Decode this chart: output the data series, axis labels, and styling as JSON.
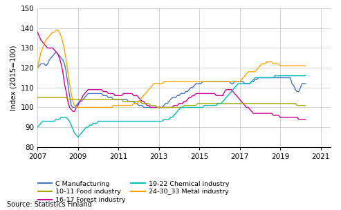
{
  "ylabel": "Index (2015=100)",
  "source": "Source: Statistics Finland",
  "ylim": [
    80,
    150
  ],
  "yticks": [
    80,
    90,
    100,
    110,
    120,
    130,
    140,
    150
  ],
  "xlim": [
    2007.0,
    2021.5
  ],
  "xticks": [
    2007,
    2009,
    2011,
    2013,
    2015,
    2017,
    2019,
    2021
  ],
  "colors": {
    "C Manufacturing": "#4472C4",
    "16-17 Forest industry": "#CC0099",
    "10-11 Food industry": "#AAAA00",
    "19-22 Chemical industry": "#00BBBB",
    "24-30_33 Metal industry": "#FFA500"
  },
  "legend_order": [
    "C Manufacturing",
    "10-11 Food industry",
    "16-17 Forest industry",
    "19-22 Chemical industry",
    "24-30_33 Metal industry"
  ],
  "series": {
    "C Manufacturing": [
      120,
      121,
      122,
      122,
      122,
      121,
      122,
      124,
      125,
      126,
      127,
      128,
      127,
      126,
      125,
      124,
      122,
      118,
      112,
      106,
      101,
      100,
      100,
      101,
      102,
      103,
      103,
      104,
      105,
      106,
      107,
      107,
      107,
      107,
      107,
      107,
      107,
      107,
      107,
      106,
      106,
      106,
      105,
      105,
      105,
      104,
      104,
      104,
      104,
      104,
      104,
      104,
      104,
      104,
      103,
      103,
      103,
      103,
      102,
      102,
      101,
      101,
      101,
      100,
      100,
      100,
      100,
      100,
      100,
      100,
      100,
      100,
      100,
      100,
      100,
      101,
      102,
      102,
      103,
      104,
      105,
      105,
      105,
      106,
      106,
      107,
      107,
      107,
      108,
      108,
      109,
      110,
      110,
      111,
      112,
      112,
      112,
      112,
      113,
      113,
      113,
      113,
      113,
      113,
      113,
      113,
      113,
      113,
      113,
      113,
      113,
      113,
      113,
      113,
      113,
      112,
      112,
      113,
      113,
      113,
      113,
      113,
      113,
      112,
      112,
      112,
      112,
      113,
      113,
      114,
      114,
      115,
      115,
      115,
      115,
      115,
      115,
      115,
      115,
      115,
      115,
      115,
      115,
      115,
      115,
      115,
      115,
      115,
      115,
      115,
      115,
      112,
      111,
      109,
      108,
      108,
      110,
      112,
      112,
      112
    ],
    "16-17 Forest industry": [
      138,
      136,
      134,
      133,
      132,
      131,
      130,
      130,
      130,
      130,
      129,
      128,
      127,
      125,
      122,
      118,
      112,
      108,
      103,
      100,
      99,
      98,
      98,
      100,
      101,
      103,
      104,
      106,
      107,
      108,
      109,
      109,
      109,
      109,
      109,
      109,
      109,
      109,
      109,
      108,
      108,
      108,
      107,
      107,
      107,
      107,
      106,
      106,
      106,
      106,
      106,
      107,
      107,
      107,
      107,
      107,
      107,
      106,
      106,
      106,
      105,
      104,
      103,
      103,
      102,
      101,
      101,
      100,
      100,
      100,
      100,
      100,
      100,
      100,
      100,
      100,
      100,
      100,
      100,
      100,
      100,
      101,
      101,
      101,
      102,
      102,
      102,
      103,
      103,
      104,
      105,
      105,
      106,
      106,
      107,
      107,
      107,
      107,
      107,
      107,
      107,
      107,
      107,
      107,
      107,
      107,
      106,
      106,
      106,
      106,
      106,
      108,
      109,
      109,
      109,
      109,
      108,
      107,
      106,
      105,
      104,
      103,
      102,
      101,
      100,
      100,
      99,
      98,
      97,
      97,
      97,
      97,
      97,
      97,
      97,
      97,
      97,
      97,
      97,
      97,
      96,
      96,
      96,
      96,
      95,
      95,
      95,
      95,
      95,
      95,
      95,
      95,
      95,
      95,
      95,
      94,
      94,
      94,
      94,
      94
    ],
    "10-11 Food industry": [
      105,
      105,
      105,
      105,
      105,
      105,
      105,
      105,
      105,
      105,
      105,
      105,
      105,
      105,
      105,
      105,
      105,
      105,
      104,
      104,
      104,
      104,
      104,
      104,
      104,
      104,
      104,
      104,
      104,
      104,
      104,
      104,
      104,
      104,
      104,
      104,
      104,
      104,
      104,
      104,
      104,
      104,
      104,
      104,
      104,
      104,
      104,
      104,
      104,
      104,
      104,
      103,
      103,
      103,
      103,
      103,
      103,
      103,
      103,
      103,
      103,
      103,
      102,
      102,
      102,
      102,
      102,
      101,
      101,
      101,
      101,
      100,
      100,
      100,
      100,
      100,
      100,
      100,
      100,
      100,
      100,
      100,
      100,
      100,
      100,
      100,
      100,
      101,
      101,
      101,
      101,
      101,
      101,
      101,
      101,
      102,
      102,
      102,
      102,
      102,
      102,
      102,
      102,
      102,
      102,
      102,
      102,
      102,
      102,
      102,
      102,
      102,
      102,
      102,
      102,
      102,
      102,
      102,
      102,
      102,
      102,
      102,
      102,
      102,
      102,
      102,
      102,
      102,
      102,
      102,
      102,
      102,
      102,
      102,
      102,
      102,
      102,
      102,
      102,
      102,
      102,
      102,
      102,
      102,
      102,
      102,
      102,
      102,
      102,
      102,
      102,
      102,
      102,
      102,
      101,
      101,
      101,
      101,
      101,
      101
    ],
    "19-22 Chemical industry": [
      90,
      91,
      92,
      93,
      93,
      93,
      93,
      93,
      93,
      93,
      93,
      94,
      94,
      94,
      95,
      95,
      95,
      95,
      94,
      93,
      91,
      89,
      87,
      86,
      85,
      86,
      87,
      88,
      89,
      90,
      90,
      91,
      91,
      92,
      92,
      92,
      93,
      93,
      93,
      93,
      93,
      93,
      93,
      93,
      93,
      93,
      93,
      93,
      93,
      93,
      93,
      93,
      93,
      93,
      93,
      93,
      93,
      93,
      93,
      93,
      93,
      93,
      93,
      93,
      93,
      93,
      93,
      93,
      93,
      93,
      93,
      93,
      93,
      93,
      93,
      94,
      94,
      94,
      94,
      95,
      95,
      96,
      97,
      98,
      99,
      100,
      100,
      100,
      100,
      100,
      100,
      100,
      100,
      100,
      100,
      100,
      100,
      100,
      100,
      101,
      101,
      101,
      101,
      101,
      101,
      101,
      101,
      102,
      102,
      102,
      103,
      104,
      105,
      106,
      107,
      108,
      109,
      110,
      111,
      112,
      112,
      112,
      112,
      112,
      112,
      112,
      112,
      113,
      114,
      115,
      115,
      115,
      115,
      115,
      115,
      115,
      115,
      115,
      115,
      115,
      115,
      116,
      116,
      116,
      116,
      116,
      116,
      116,
      116,
      116,
      116,
      116,
      116,
      116,
      116,
      116,
      116,
      116,
      116,
      116
    ],
    "24-30_33 Metal industry": [
      120,
      124,
      128,
      130,
      132,
      134,
      135,
      136,
      137,
      138,
      138,
      139,
      139,
      138,
      136,
      133,
      129,
      124,
      118,
      112,
      107,
      103,
      101,
      100,
      100,
      100,
      100,
      100,
      100,
      100,
      100,
      100,
      100,
      100,
      100,
      100,
      100,
      100,
      100,
      100,
      100,
      100,
      100,
      100,
      100,
      101,
      101,
      101,
      101,
      101,
      101,
      101,
      101,
      101,
      101,
      101,
      101,
      102,
      102,
      102,
      103,
      104,
      105,
      106,
      107,
      108,
      109,
      110,
      111,
      112,
      112,
      112,
      112,
      112,
      112,
      113,
      113,
      113,
      113,
      113,
      113,
      113,
      113,
      113,
      113,
      113,
      113,
      113,
      113,
      113,
      113,
      113,
      113,
      113,
      113,
      113,
      113,
      113,
      113,
      113,
      113,
      113,
      113,
      113,
      113,
      113,
      113,
      113,
      113,
      113,
      113,
      113,
      113,
      113,
      113,
      113,
      113,
      113,
      113,
      113,
      113,
      114,
      115,
      116,
      117,
      118,
      118,
      118,
      118,
      118,
      119,
      120,
      121,
      122,
      122,
      122,
      123,
      123,
      123,
      123,
      122,
      122,
      122,
      122,
      121,
      121,
      121,
      121,
      121,
      121,
      121,
      121,
      121,
      121,
      121,
      121,
      121,
      121,
      121,
      121
    ]
  }
}
